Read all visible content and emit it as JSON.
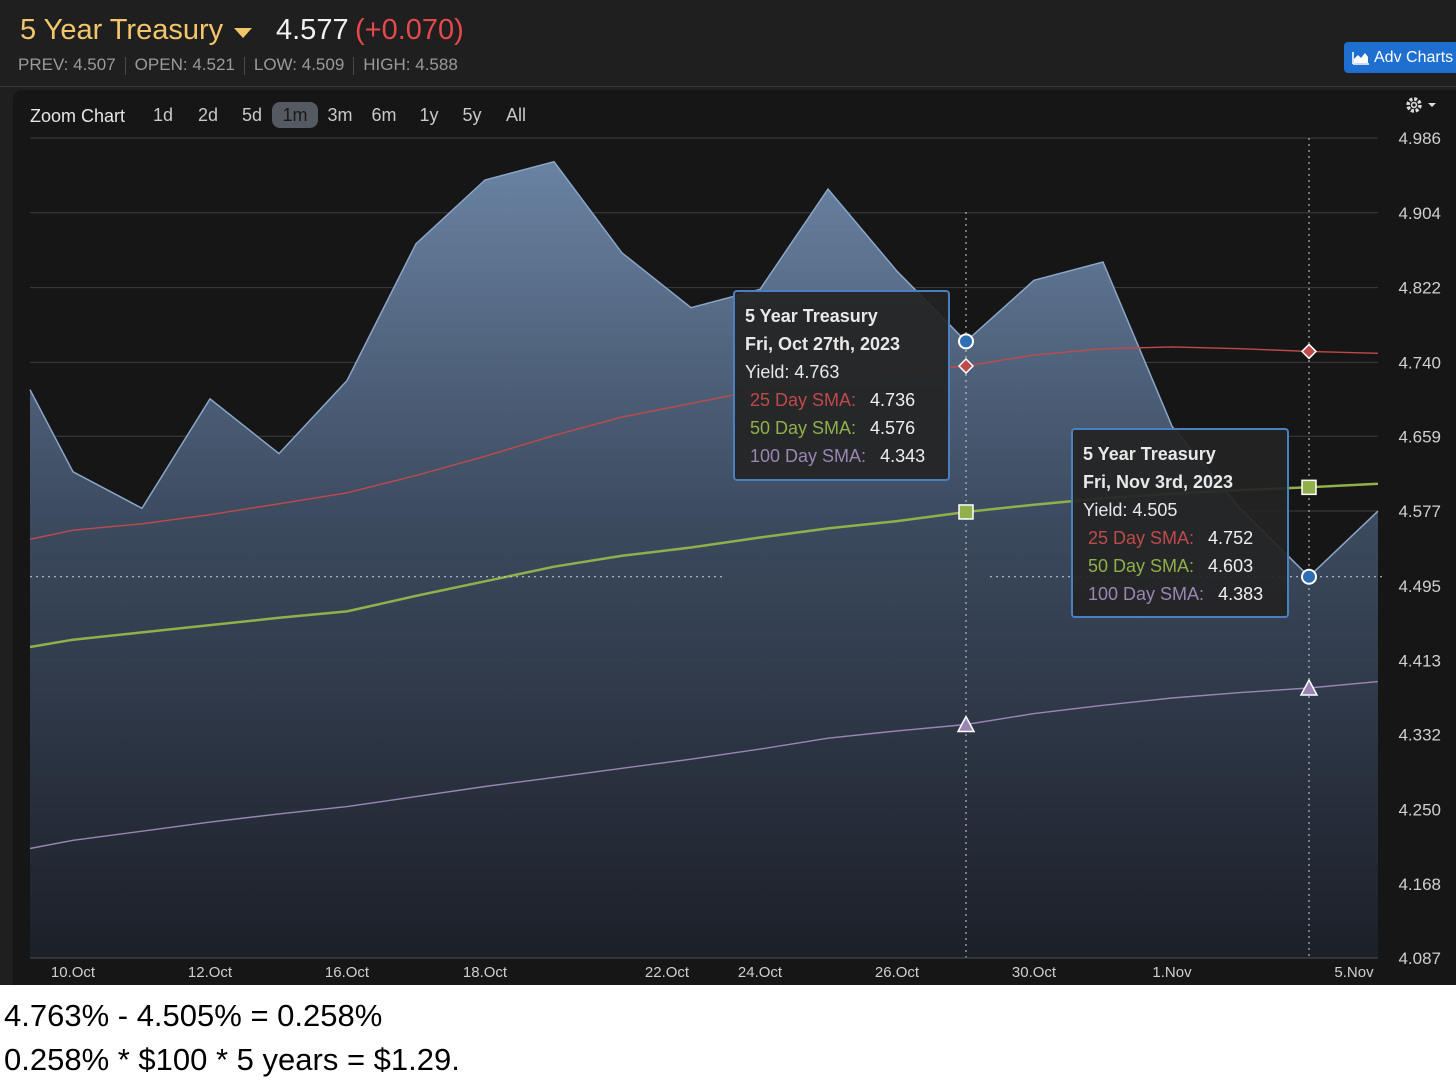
{
  "header": {
    "name": "5 Year Treasury",
    "price": "4.577",
    "change": "(+0.070)",
    "prev_label": "PREV:",
    "prev": "4.507",
    "open_label": "OPEN:",
    "open": "4.521",
    "low_label": "LOW:",
    "low": "4.509",
    "high_label": "HIGH:",
    "high": "4.588"
  },
  "adv_button": {
    "label": "Adv Charts"
  },
  "zoom": {
    "label": "Zoom Chart",
    "options": [
      "1d",
      "2d",
      "5d",
      "1m",
      "3m",
      "6m",
      "1y",
      "5y",
      "All"
    ],
    "active": "1m"
  },
  "tooltips": [
    {
      "title": "5 Year Treasury",
      "date": "Fri, Oct 27th, 2023",
      "yield_label": "Yield:",
      "yield": "4.763",
      "sma25_label": "25 Day SMA:",
      "sma25": "4.736",
      "sma50_label": "50 Day SMA:",
      "sma50": "4.576",
      "sma100_label": "100 Day SMA:",
      "sma100": "4.343"
    },
    {
      "title": "5 Year Treasury",
      "date": "Fri, Nov 3rd, 2023",
      "yield_label": "Yield:",
      "yield": "4.505",
      "sma25_label": "25 Day SMA:",
      "sma25": "4.752",
      "sma50_label": "50 Day SMA:",
      "sma50": "4.603",
      "sma100_label": "100 Day SMA:",
      "sma100": "4.383"
    }
  ],
  "caption": {
    "line1": "4.763% - 4.505% = 0.258%",
    "line2": "0.258% * $100 * 5 years = $1.29."
  },
  "colors": {
    "yield": "#8aa6c8",
    "sma25": "#c04a4a",
    "sma50": "#8fb04a",
    "sma100": "#9a86b4",
    "accent": "#1e6fcf",
    "change": "#e5484d"
  },
  "chart_data": {
    "type": "area",
    "x": [
      "Oct 9",
      "Oct 10",
      "Oct 11",
      "Oct 12",
      "Oct 13",
      "Oct 16",
      "Oct 17",
      "Oct 18",
      "Oct 19",
      "Oct 20",
      "Oct 23",
      "Oct 24",
      "Oct 25",
      "Oct 26",
      "Oct 27",
      "Oct 30",
      "Oct 31",
      "Nov 1",
      "Nov 2",
      "Nov 3",
      "Nov 6"
    ],
    "xticks": [
      "10.Oct",
      "12.Oct",
      "16.Oct",
      "18.Oct",
      "22.Oct",
      "24.Oct",
      "26.Oct",
      "30.Oct",
      "1.Nov",
      "5.Nov"
    ],
    "yticks": [
      "4.986",
      "4.904",
      "4.822",
      "4.740",
      "4.659",
      "4.577",
      "4.495",
      "4.413",
      "4.332",
      "4.250",
      "4.168",
      "4.087"
    ],
    "ylim": [
      4.087,
      4.986
    ],
    "series": [
      {
        "name": "5 Year Treasury",
        "values": [
          4.71,
          4.62,
          4.58,
          4.7,
          4.64,
          4.72,
          4.87,
          4.94,
          4.96,
          4.86,
          4.8,
          4.82,
          4.93,
          4.84,
          4.763,
          4.83,
          4.85,
          4.67,
          4.58,
          4.505,
          4.577
        ]
      },
      {
        "name": "25 Day SMA",
        "values": [
          4.546,
          4.556,
          4.563,
          4.573,
          4.585,
          4.597,
          4.616,
          4.637,
          4.66,
          4.68,
          4.695,
          4.71,
          4.722,
          4.73,
          4.736,
          4.748,
          4.755,
          4.757,
          4.755,
          4.752,
          4.75
        ]
      },
      {
        "name": "50 Day SMA",
        "values": [
          4.428,
          4.436,
          4.444,
          4.452,
          4.46,
          4.467,
          4.484,
          4.5,
          4.516,
          4.528,
          4.537,
          4.548,
          4.558,
          4.566,
          4.576,
          4.584,
          4.591,
          4.596,
          4.6,
          4.603,
          4.607
        ]
      },
      {
        "name": "100 Day SMA",
        "values": [
          4.207,
          4.216,
          4.226,
          4.236,
          4.245,
          4.253,
          4.264,
          4.275,
          4.285,
          4.295,
          4.305,
          4.316,
          4.328,
          4.336,
          4.343,
          4.355,
          4.364,
          4.372,
          4.378,
          4.383,
          4.39
        ]
      }
    ],
    "markers": [
      {
        "date": "Oct 27",
        "yield": 4.763,
        "sma25": 4.736,
        "sma50": 4.576,
        "sma100": 4.343
      },
      {
        "date": "Nov 3",
        "yield": 4.505,
        "sma25": 4.752,
        "sma50": 4.603,
        "sma100": 4.383
      }
    ],
    "grid": true
  }
}
